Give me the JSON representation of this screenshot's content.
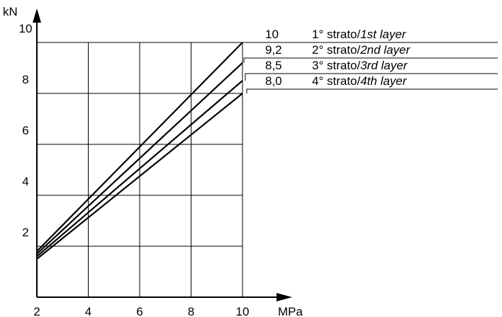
{
  "chart_data": {
    "type": "line",
    "xlabel": "MPa",
    "ylabel": "kN",
    "xlim": [
      2,
      10
    ],
    "ylim": [
      0,
      10
    ],
    "x_ticks": [
      "2",
      "4",
      "6",
      "8",
      "10"
    ],
    "y_ticks": [
      "2",
      "4",
      "6",
      "8",
      "10"
    ],
    "grid": true,
    "series": [
      {
        "name_prefix": "1° strato/",
        "name_italic": "1st layer",
        "value_label": "10",
        "x": [
          2,
          10
        ],
        "y": [
          1.8,
          10.0
        ]
      },
      {
        "name_prefix": "2° strato/",
        "name_italic": "2nd layer",
        "value_label": "9,2",
        "x": [
          2,
          10
        ],
        "y": [
          1.7,
          9.2
        ]
      },
      {
        "name_prefix": "3° strato/",
        "name_italic": "3rd layer",
        "value_label": "8,5",
        "x": [
          2,
          10
        ],
        "y": [
          1.6,
          8.5
        ]
      },
      {
        "name_prefix": "4° strato/",
        "name_italic": "4th layer",
        "value_label": "8,0",
        "x": [
          2,
          10
        ],
        "y": [
          1.5,
          8.0
        ]
      }
    ]
  }
}
